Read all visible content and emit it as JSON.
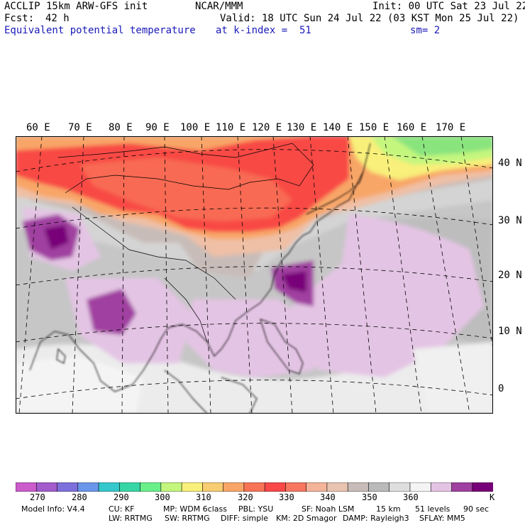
{
  "header": {
    "model": "ACCLIP 15km ARW-GFS init",
    "org": "NCAR/MMM",
    "init": "Init: 00 UTC Sat 23 Jul 22",
    "fcst_label": "Fcst:",
    "fcst_value": "42 h",
    "valid": "Valid: 18 UTC Sun 24 Jul 22 (03 KST Mon 25 Jul 22)",
    "field": "Equivalent potential temperature",
    "level": "at k-index =  51",
    "smoothing": "sm= 2"
  },
  "map": {
    "lon_labels": [
      "60 E",
      "70 E",
      "80 E",
      "90 E",
      "100 E",
      "110 E",
      "120 E",
      "130 E",
      "140 E",
      "150 E",
      "160 E",
      "170 E"
    ],
    "lat_labels": [
      "40 N",
      "30 N",
      "20 N",
      "10 N",
      "0"
    ]
  },
  "colorbar": {
    "colors": [
      "#cc5ccc",
      "#a25ccc",
      "#7e70dc",
      "#6a96ea",
      "#34c8cc",
      "#38d6a6",
      "#6af08a",
      "#c4f67e",
      "#f8f07a",
      "#f8cc72",
      "#f8a668",
      "#f87456",
      "#f84848",
      "#f87660",
      "#f4b49a",
      "#e8c4b0",
      "#c8bcb8",
      "#bababa",
      "#dedede",
      "#f4f4f4",
      "#e4c4e4",
      "#a040a0",
      "#780078"
    ],
    "tick_labels": [
      "270",
      "280",
      "290",
      "300",
      "310",
      "320",
      "330",
      "340",
      "350",
      "360"
    ],
    "unit": "K"
  },
  "footer": {
    "model_info": "Model Info: V4.4",
    "cu": "CU: KF",
    "mp": "MP: WDM 6class",
    "pbl": "PBL: YSU",
    "sf": "SF: Noah LSM",
    "res": "15 km",
    "levels": "51 levels",
    "dt": "90 sec",
    "lw": "LW: RRTMG",
    "sw": "SW: RRTMG",
    "diff": "DIFF: simple",
    "km": "KM: 2D Smagor",
    "damp": "DAMP: Rayleigh3",
    "sflay": "SFLAY: MM5"
  }
}
